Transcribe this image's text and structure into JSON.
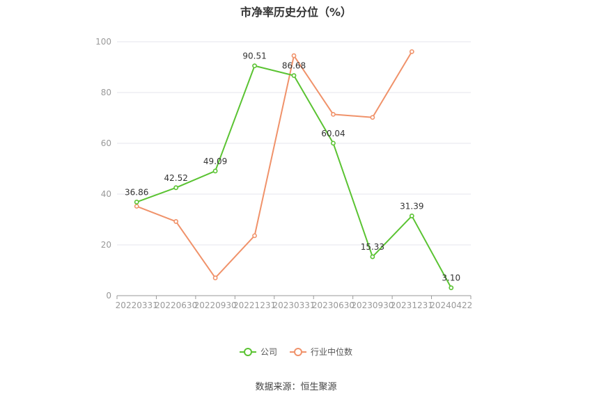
{
  "chart_data": {
    "type": "line",
    "title": "市净率历史分位（%）",
    "categories": [
      "20220331",
      "20220630",
      "20220930",
      "20221231",
      "20230331",
      "20230630",
      "20230930",
      "20231231",
      "20240422"
    ],
    "ylim": [
      0,
      100
    ],
    "yticks": [
      0,
      20,
      40,
      60,
      80,
      100
    ],
    "grid": true,
    "legend_position": "bottom",
    "series": [
      {
        "name": "公司",
        "color": "#5ac332",
        "values": [
          36.86,
          42.52,
          49.09,
          90.51,
          86.68,
          60.04,
          15.33,
          31.39,
          3.1
        ],
        "labels": [
          "36.86",
          "42.52",
          "49.09",
          "90.51",
          "86.68",
          "60.04",
          "15.33",
          "31.39",
          "3.10"
        ]
      },
      {
        "name": "行业中位数",
        "color": "#f0926a",
        "values": [
          35.2,
          29.2,
          7.0,
          23.6,
          94.5,
          71.4,
          70.2,
          96.1,
          null
        ],
        "labels": null
      }
    ]
  },
  "source": "数据来源：恒生聚源"
}
